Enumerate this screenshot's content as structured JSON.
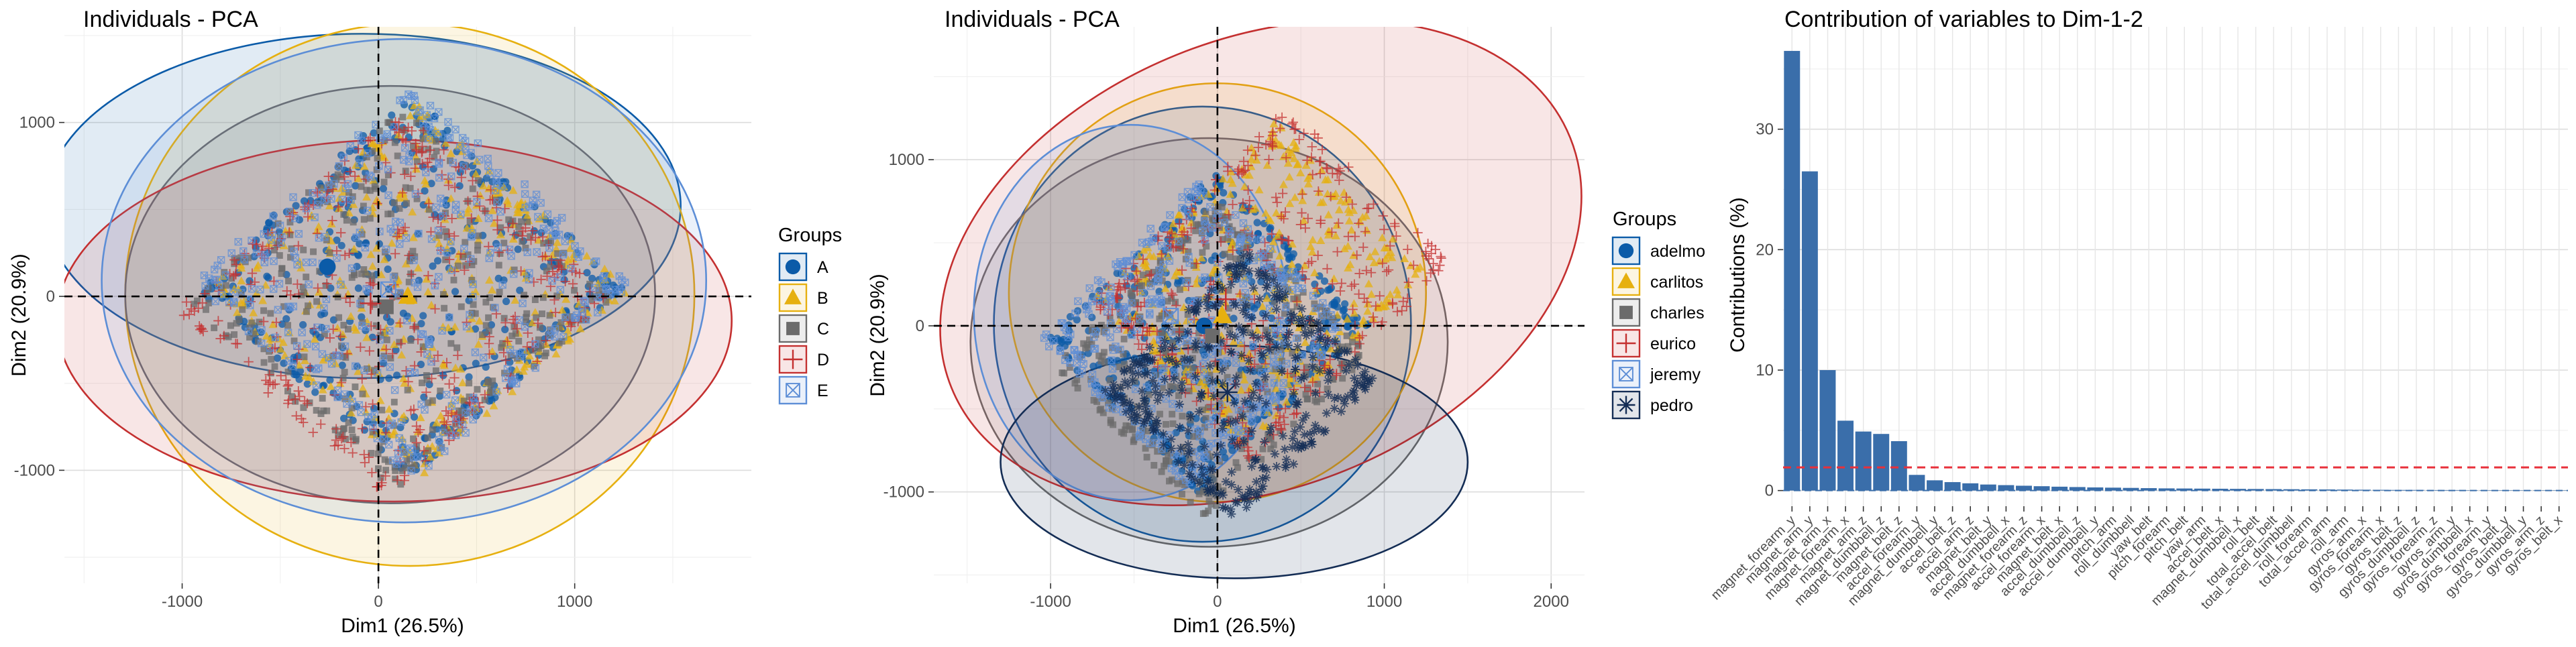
{
  "panels": {
    "p1": {
      "title": "Individuals - PCA",
      "xlabel": "Dim1 (26.5%)",
      "ylabel": "Dim2 (20.9%)",
      "legend_title": "Groups"
    },
    "p2": {
      "title": "Individuals - PCA",
      "xlabel": "Dim1 (26.5%)",
      "ylabel": "Dim2 (20.9%)",
      "legend_title": "Groups"
    },
    "p3": {
      "title": "Contribution of variables to Dim-1-2",
      "ylabel": "Contributions (%)"
    }
  },
  "chart_data": [
    {
      "type": "scatter",
      "title": "Individuals - PCA",
      "xlabel": "Dim1 (26.5%)",
      "ylabel": "Dim2 (20.9%)",
      "xticks": [
        -1000,
        0,
        1000
      ],
      "yticks": [
        -1000,
        0,
        1000
      ],
      "xlim": [
        -1600,
        1900
      ],
      "ylim": [
        -1650,
        1550
      ],
      "grid": true,
      "legend_position": "right",
      "legend_title": "Groups",
      "series": [
        {
          "name": "A",
          "color": "#0b5ba8",
          "shape": "circle",
          "centroid": [
            -260,
            170
          ],
          "ellipse": {
            "cx": -80,
            "cy": 520,
            "rx": 1620,
            "ry": 990,
            "angle": 0
          }
        },
        {
          "name": "B",
          "color": "#e6b010",
          "shape": "triangle",
          "centroid": [
            150,
            0
          ],
          "ellipse": {
            "cx": 160,
            "cy": 10,
            "rx": 1450,
            "ry": 1560,
            "angle": 0
          }
        },
        {
          "name": "C",
          "color": "#6b6b6b",
          "shape": "square",
          "centroid": [
            40,
            -60
          ],
          "ellipse": {
            "cx": 60,
            "cy": 10,
            "rx": 1350,
            "ry": 1200,
            "angle": 0
          }
        },
        {
          "name": "D",
          "color": "#c43030",
          "shape": "plus",
          "centroid": [
            -40,
            -40
          ],
          "ellipse": {
            "cx": 80,
            "cy": -140,
            "rx": 1720,
            "ry": 1040,
            "angle": 0
          }
        },
        {
          "name": "E",
          "color": "#5d8ed6",
          "shape": "boxx",
          "centroid": [
            50,
            40
          ],
          "ellipse": {
            "cx": 130,
            "cy": 90,
            "rx": 1540,
            "ry": 1390,
            "angle": 0
          }
        }
      ]
    },
    {
      "type": "scatter",
      "title": "Individuals - PCA",
      "xlabel": "Dim1 (26.5%)",
      "ylabel": "Dim2 (20.9%)",
      "xticks": [
        -1000,
        0,
        1000,
        2000
      ],
      "yticks": [
        -1000,
        0,
        1000
      ],
      "xlim": [
        -1700,
        2200
      ],
      "ylim": [
        -1550,
        1800
      ],
      "grid": true,
      "legend_position": "right",
      "legend_title": "Groups",
      "series": [
        {
          "name": "adelmo",
          "color": "#0b5ba8",
          "shape": "circle",
          "centroid": [
            -80,
            0
          ],
          "ellipse": {
            "cx": -90,
            "cy": 10,
            "rx": 1250,
            "ry": 1310,
            "angle": 0
          }
        },
        {
          "name": "carlitos",
          "color": "#e6b010",
          "shape": "triangle",
          "centroid": [
            30,
            60
          ],
          "ellipse": {
            "cx": 0,
            "cy": 200,
            "rx": 1250,
            "ry": 1260,
            "angle": 0
          }
        },
        {
          "name": "charles",
          "color": "#6b6b6b",
          "shape": "square",
          "centroid": [
            -30,
            -60
          ],
          "ellipse": {
            "cx": -50,
            "cy": -100,
            "rx": 1430,
            "ry": 1230,
            "angle": 0
          }
        },
        {
          "name": "eurico",
          "color": "#c43030",
          "shape": "plus",
          "centroid": [
            50,
            160
          ],
          "ellipse": {
            "cx": 260,
            "cy": 380,
            "rx": 2000,
            "ry": 1350,
            "angle": -22
          }
        },
        {
          "name": "jeremy",
          "color": "#5d8ed6",
          "shape": "boxx",
          "centroid": [
            -280,
            60
          ],
          "ellipse": {
            "cx": -520,
            "cy": 80,
            "rx": 940,
            "ry": 1130,
            "angle": 0
          }
        },
        {
          "name": "pedro",
          "color": "#142d55",
          "shape": "star",
          "centroid": [
            60,
            -400
          ],
          "ellipse": {
            "cx": 100,
            "cy": -820,
            "rx": 1400,
            "ry": 700,
            "angle": 0
          }
        }
      ]
    },
    {
      "type": "bar",
      "title": "Contribution of variables to Dim-1-2",
      "ylabel": "Contributions (%)",
      "yticks": [
        0,
        10,
        20,
        30
      ],
      "ylim": [
        -1.3,
        38.5
      ],
      "grid": true,
      "bar_color": "#3a6eaa",
      "reference_line": {
        "value": 1.92,
        "color": "#e8303a",
        "style": "dashed"
      },
      "categories": [
        "magnet_forearm_y",
        "magnet_arm_y",
        "magnet_arm_x",
        "magnet_forearm_x",
        "magnet_arm_z",
        "magnet_dumbbell_z",
        "magnet_belt_z",
        "accel_forearm_y",
        "magnet_dumbbell_y",
        "accel_belt_z",
        "accel_arm_z",
        "magnet_belt_y",
        "accel_dumbbell_x",
        "magnet_forearm_z",
        "accel_forearm_x",
        "magnet_belt_x",
        "accel_dumbbell_z",
        "accel_dumbbell_y",
        "pitch_arm",
        "roll_dumbbell",
        "yaw_belt",
        "pitch_forearm",
        "pitch_belt",
        "yaw_arm",
        "accel_belt_x",
        "magnet_dumbbell_x",
        "roll_belt",
        "total_accel_belt",
        "total_accel_dumbbell",
        "roll_forearm",
        "total_accel_arm",
        "roll_arm",
        "gyros_arm_x",
        "gyros_forearm_x",
        "gyros_belt_z",
        "gyros_dumbbell_z",
        "gyros_forearm_z",
        "gyros_arm_y",
        "gyros_dumbbell_x",
        "gyros_forearm_y",
        "gyros_belt_y",
        "gyros_dumbbell_y",
        "gyros_arm_z",
        "gyros_belt_x"
      ],
      "values": [
        36.5,
        26.5,
        10.0,
        5.8,
        4.9,
        4.7,
        4.1,
        1.3,
        0.85,
        0.7,
        0.6,
        0.5,
        0.45,
        0.4,
        0.36,
        0.32,
        0.29,
        0.26,
        0.24,
        0.22,
        0.2,
        0.18,
        0.17,
        0.16,
        0.15,
        0.14,
        0.13,
        0.12,
        0.11,
        0.1,
        0.09,
        0.08,
        0.07,
        0.06,
        0.05,
        0.05,
        0.04,
        0.04,
        0.03,
        0.03,
        0.02,
        0.02,
        0.01,
        0.01
      ]
    }
  ]
}
